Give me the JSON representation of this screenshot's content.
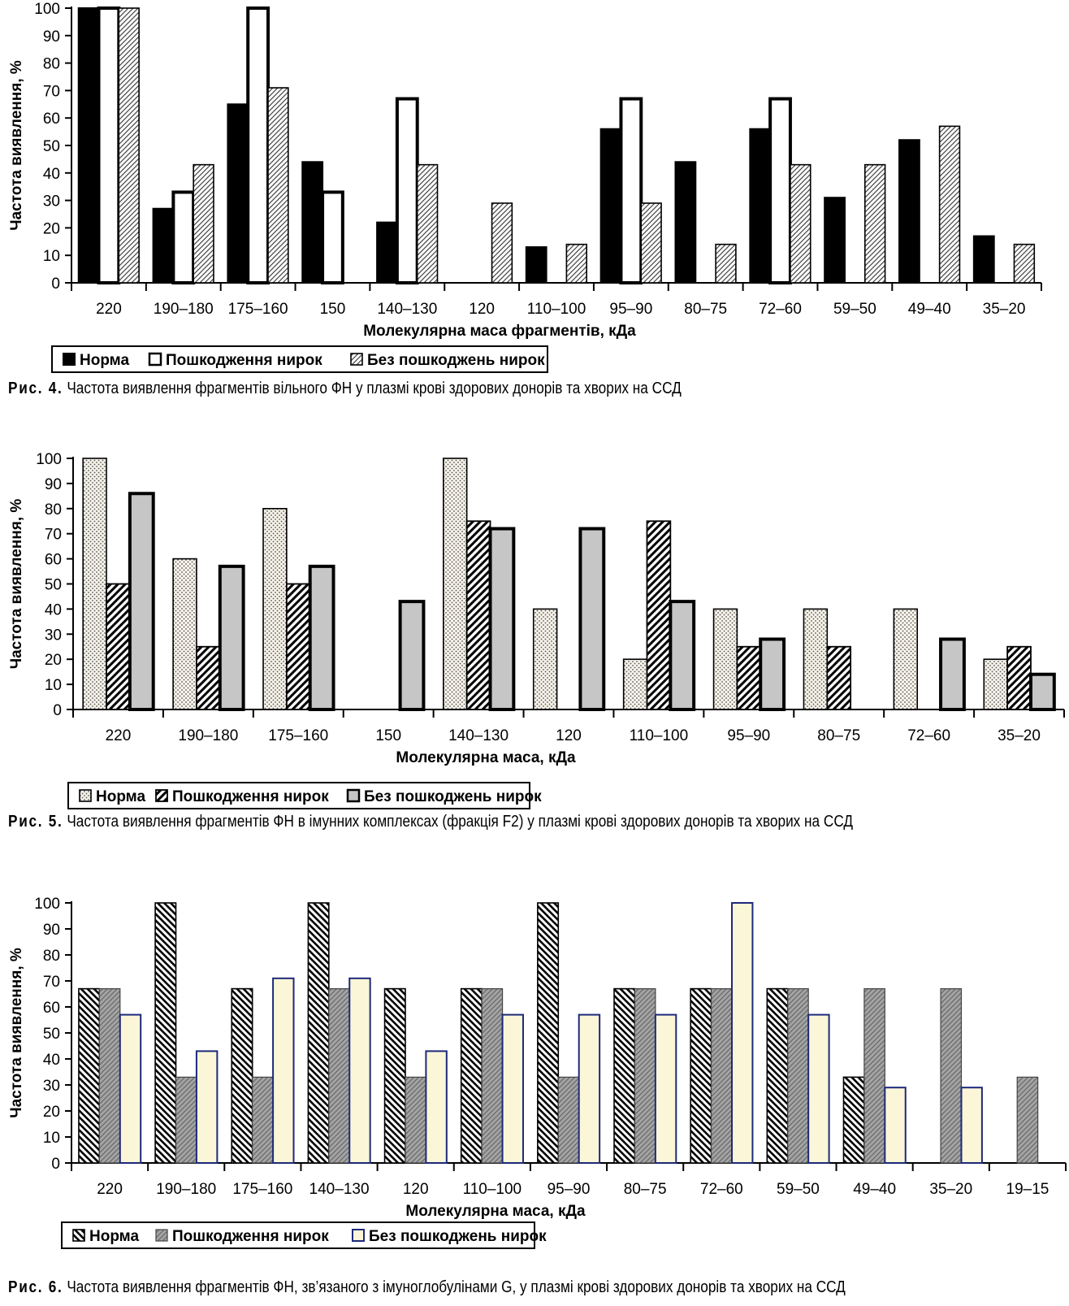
{
  "figures": [
    {
      "caption_prefix": "Рис. 4.",
      "caption_text": "Частота виявлення фрагментів вільного ФН у плазмі крові здорових донорів та хворих на ССД",
      "chart_data": {
        "type": "bar",
        "ylabel": "Частота виявлення, %",
        "xlabel": "Молекулярна маса фрагментів, кДа",
        "ylim": [
          0,
          100
        ],
        "yticks": [
          0,
          10,
          20,
          30,
          40,
          50,
          60,
          70,
          80,
          90,
          100
        ],
        "legend_position": "bottom-left",
        "categories": [
          "220",
          "190–180",
          "175–160",
          "150",
          "140–130",
          "120",
          "110–100",
          "95–90",
          "80–75",
          "72–60",
          "59–50",
          "49–40",
          "35–20"
        ],
        "series": [
          {
            "name": "Норма",
            "style": "solid-black",
            "values": [
              100,
              27,
              65,
              44,
              22,
              null,
              13,
              56,
              44,
              56,
              31,
              52,
              17
            ]
          },
          {
            "name": "Пошкодження нирок",
            "style": "white",
            "values": [
              100,
              33,
              100,
              33,
              67,
              null,
              null,
              67,
              null,
              67,
              null,
              null,
              null
            ]
          },
          {
            "name": "Без пошкоджень нирок",
            "style": "diag-hatch",
            "values": [
              100,
              43,
              71,
              null,
              43,
              29,
              14,
              29,
              14,
              43,
              43,
              57,
              14
            ]
          }
        ]
      }
    },
    {
      "caption_prefix": "Рис. 5.",
      "caption_text": "Частота виявлення фрагментів ФН в імунних комплексах (фракція F2) у плазмі крові здорових донорів та хворих на ССД",
      "chart_data": {
        "type": "bar",
        "ylabel": "Частота виявлення, %",
        "xlabel": "Молекулярна маса, кДа",
        "ylim": [
          0,
          100
        ],
        "yticks": [
          0,
          10,
          20,
          30,
          40,
          50,
          60,
          70,
          80,
          90,
          100
        ],
        "legend_position": "bottom-left",
        "categories": [
          "220",
          "190–180",
          "175–160",
          "150",
          "140–130",
          "120",
          "110–100",
          "95–90",
          "80–75",
          "72–60",
          "35–20"
        ],
        "series": [
          {
            "name": "Норма",
            "style": "dots",
            "values": [
              100,
              60,
              80,
              null,
              100,
              40,
              20,
              40,
              40,
              40,
              20
            ]
          },
          {
            "name": "Пошкодження нирок",
            "style": "bold-hatch",
            "values": [
              50,
              25,
              50,
              null,
              75,
              null,
              75,
              25,
              25,
              null,
              25
            ]
          },
          {
            "name": "Без пошкоджень нирок",
            "style": "gray",
            "values": [
              86,
              57,
              57,
              43,
              72,
              72,
              43,
              28,
              null,
              28,
              14
            ]
          }
        ]
      }
    },
    {
      "caption_prefix": "Рис. 6.",
      "caption_text": "Частота виявлення фрагментів ФН, зв’язаного з імуноглобулінами G, у плазмі крові здорових донорів та хворих на ССД",
      "chart_data": {
        "type": "bar",
        "ylabel": "Частота виявлення, %",
        "xlabel": "Молекулярна маса, кДа",
        "ylim": [
          0,
          100
        ],
        "yticks": [
          0,
          10,
          20,
          30,
          40,
          50,
          60,
          70,
          80,
          90,
          100
        ],
        "legend_position": "bottom-left",
        "categories": [
          "220",
          "190–180",
          "175–160",
          "140–130",
          "120",
          "110–100",
          "95–90",
          "80–75",
          "72–60",
          "59–50",
          "49–40",
          "35–20",
          "19–15"
        ],
        "series": [
          {
            "name": "Норма",
            "style": "back-hatch",
            "values": [
              67,
              100,
              67,
              100,
              67,
              67,
              100,
              67,
              67,
              67,
              33,
              null,
              null
            ]
          },
          {
            "name": "Пошкодження нирок",
            "style": "gray-hatch",
            "values": [
              67,
              33,
              33,
              67,
              33,
              67,
              33,
              67,
              67,
              67,
              67,
              67,
              33
            ]
          },
          {
            "name": "Без пошкоджень нирок",
            "style": "cream",
            "values": [
              57,
              43,
              71,
              71,
              43,
              57,
              57,
              57,
              100,
              57,
              29,
              29,
              null
            ]
          }
        ]
      }
    }
  ]
}
